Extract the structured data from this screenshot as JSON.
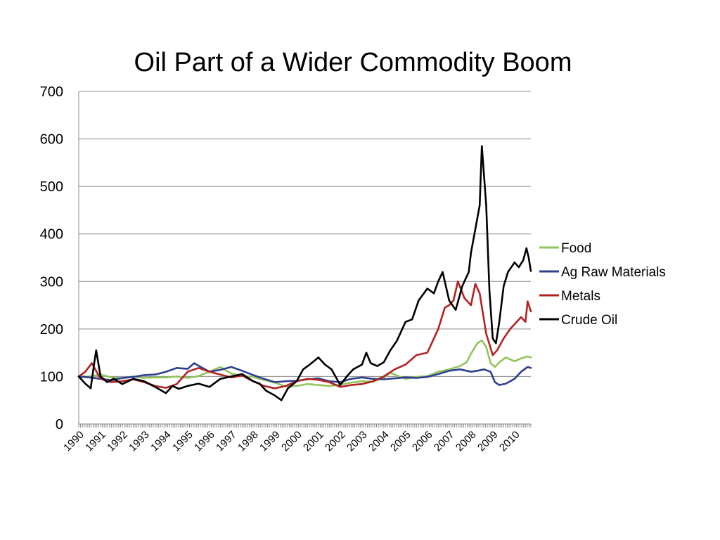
{
  "chart_data": {
    "type": "line",
    "title": "Oil Part of a Wider Commodity Boom",
    "xlabel": "",
    "ylabel": "",
    "ylim": [
      0,
      700
    ],
    "yticks": [
      "0",
      "100",
      "200",
      "300",
      "400",
      "500",
      "600",
      "700"
    ],
    "xticks": [
      "1990",
      "1991",
      "1992",
      "1993",
      "1994",
      "1995",
      "1996",
      "1997",
      "1998",
      "1999",
      "2000",
      "2001",
      "2002",
      "2003",
      "2004",
      "2005",
      "2006",
      "2007",
      "2008",
      "2009",
      "2010"
    ],
    "xlim": [
      1990,
      2010.75
    ],
    "grid": true,
    "legend_position": "right",
    "series": [
      {
        "name": "Food",
        "color": "#92c55b",
        "x": [
          1990,
          1990.5,
          1991,
          1991.5,
          1992,
          1992.5,
          1993,
          1993.5,
          1994,
          1994.5,
          1995,
          1995.5,
          1996,
          1996.5,
          1997,
          1997.5,
          1998,
          1998.5,
          1999,
          1999.5,
          2000,
          2000.5,
          2001,
          2001.5,
          2002,
          2002.5,
          2003,
          2003.5,
          2004,
          2004.3,
          2004.6,
          2005,
          2005.5,
          2006,
          2006.5,
          2007,
          2007.5,
          2007.8,
          2008,
          2008.3,
          2008.5,
          2008.7,
          2008.9,
          2009.1,
          2009.3,
          2009.6,
          2010,
          2010.3,
          2010.6,
          2010.75
        ],
        "values": [
          100,
          100,
          104,
          98,
          96,
          100,
          97,
          98,
          98,
          100,
          97,
          101,
          110,
          120,
          106,
          101,
          99,
          93,
          87,
          79,
          80,
          84,
          82,
          80,
          83,
          87,
          90,
          89,
          97,
          108,
          102,
          95,
          99,
          101,
          110,
          115,
          122,
          130,
          148,
          170,
          176,
          162,
          128,
          120,
          130,
          140,
          132,
          138,
          142,
          140
        ]
      },
      {
        "name": "Ag Raw Materials",
        "color": "#2e3f8f",
        "x": [
          1990,
          1990.5,
          1991,
          1991.5,
          1992,
          1992.5,
          1993,
          1993.5,
          1994,
          1994.5,
          1995,
          1995.3,
          1995.6,
          1996,
          1996.5,
          1997,
          1997.5,
          1998,
          1998.5,
          1999,
          1999.5,
          2000,
          2000.5,
          2001,
          2001.5,
          2002,
          2002.5,
          2003,
          2003.5,
          2004,
          2004.5,
          2005,
          2005.5,
          2006,
          2006.5,
          2007,
          2007.5,
          2008,
          2008.3,
          2008.6,
          2008.9,
          2009.1,
          2009.3,
          2009.6,
          2010,
          2010.3,
          2010.6,
          2010.75
        ],
        "values": [
          100,
          98,
          95,
          92,
          97,
          99,
          103,
          104,
          110,
          118,
          116,
          128,
          120,
          110,
          114,
          120,
          112,
          103,
          95,
          88,
          90,
          91,
          94,
          96,
          90,
          88,
          95,
          98,
          95,
          94,
          96,
          98,
          97,
          99,
          105,
          112,
          115,
          110,
          112,
          115,
          110,
          88,
          82,
          85,
          95,
          110,
          120,
          118
        ]
      },
      {
        "name": "Metals",
        "color": "#b32222",
        "x": [
          1990,
          1990.3,
          1990.6,
          1991,
          1991.5,
          1992,
          1992.5,
          1993,
          1993.5,
          1994,
          1994.5,
          1995,
          1995.5,
          1996,
          1996.5,
          1997,
          1997.5,
          1998,
          1998.5,
          1999,
          1999.5,
          2000,
          2000.5,
          2001,
          2001.5,
          2002,
          2002.5,
          2003,
          2003.5,
          2004,
          2004.5,
          2005,
          2005.5,
          2006,
          2006.3,
          2006.5,
          2006.8,
          2007,
          2007.2,
          2007.4,
          2007.7,
          2008,
          2008.2,
          2008.4,
          2008.7,
          2009,
          2009.2,
          2009.5,
          2009.8,
          2010,
          2010.3,
          2010.5,
          2010.6,
          2010.75
        ],
        "values": [
          100,
          110,
          128,
          95,
          88,
          90,
          94,
          88,
          80,
          76,
          84,
          110,
          118,
          110,
          104,
          98,
          102,
          90,
          80,
          75,
          80,
          90,
          95,
          93,
          88,
          78,
          82,
          84,
          90,
          100,
          115,
          125,
          145,
          150,
          180,
          200,
          245,
          250,
          260,
          300,
          265,
          250,
          295,
          275,
          190,
          145,
          155,
          180,
          200,
          210,
          225,
          215,
          258,
          237
        ]
      },
      {
        "name": "Crude Oil",
        "color": "#000000",
        "x": [
          1990,
          1990.3,
          1990.55,
          1990.7,
          1990.8,
          1991,
          1991.3,
          1991.6,
          1992,
          1992.5,
          1993,
          1993.5,
          1994,
          1994.3,
          1994.6,
          1995,
          1995.5,
          1996,
          1996.5,
          1997,
          1997.5,
          1998,
          1998.3,
          1998.6,
          1999,
          1999.3,
          1999.6,
          2000,
          2000.3,
          2000.6,
          2001,
          2001.3,
          2001.6,
          2002,
          2002.3,
          2002.6,
          2003,
          2003.2,
          2003.4,
          2003.7,
          2004,
          2004.3,
          2004.6,
          2005,
          2005.3,
          2005.6,
          2006,
          2006.3,
          2006.5,
          2006.7,
          2007,
          2007.3,
          2007.6,
          2007.9,
          2008,
          2008.2,
          2008.4,
          2008.5,
          2008.7,
          2008.85,
          2009,
          2009.15,
          2009.3,
          2009.5,
          2009.7,
          2010,
          2010.2,
          2010.4,
          2010.55,
          2010.65,
          2010.75
        ],
        "values": [
          100,
          85,
          75,
          125,
          155,
          100,
          88,
          95,
          84,
          95,
          90,
          78,
          65,
          80,
          74,
          80,
          85,
          78,
          95,
          100,
          105,
          90,
          85,
          70,
          60,
          50,
          75,
          90,
          115,
          125,
          140,
          125,
          115,
          82,
          100,
          115,
          125,
          150,
          128,
          122,
          130,
          155,
          175,
          215,
          220,
          260,
          285,
          275,
          300,
          320,
          260,
          240,
          290,
          320,
          360,
          410,
          460,
          585,
          460,
          280,
          180,
          170,
          215,
          290,
          320,
          340,
          330,
          345,
          370,
          350,
          322
        ]
      }
    ]
  }
}
